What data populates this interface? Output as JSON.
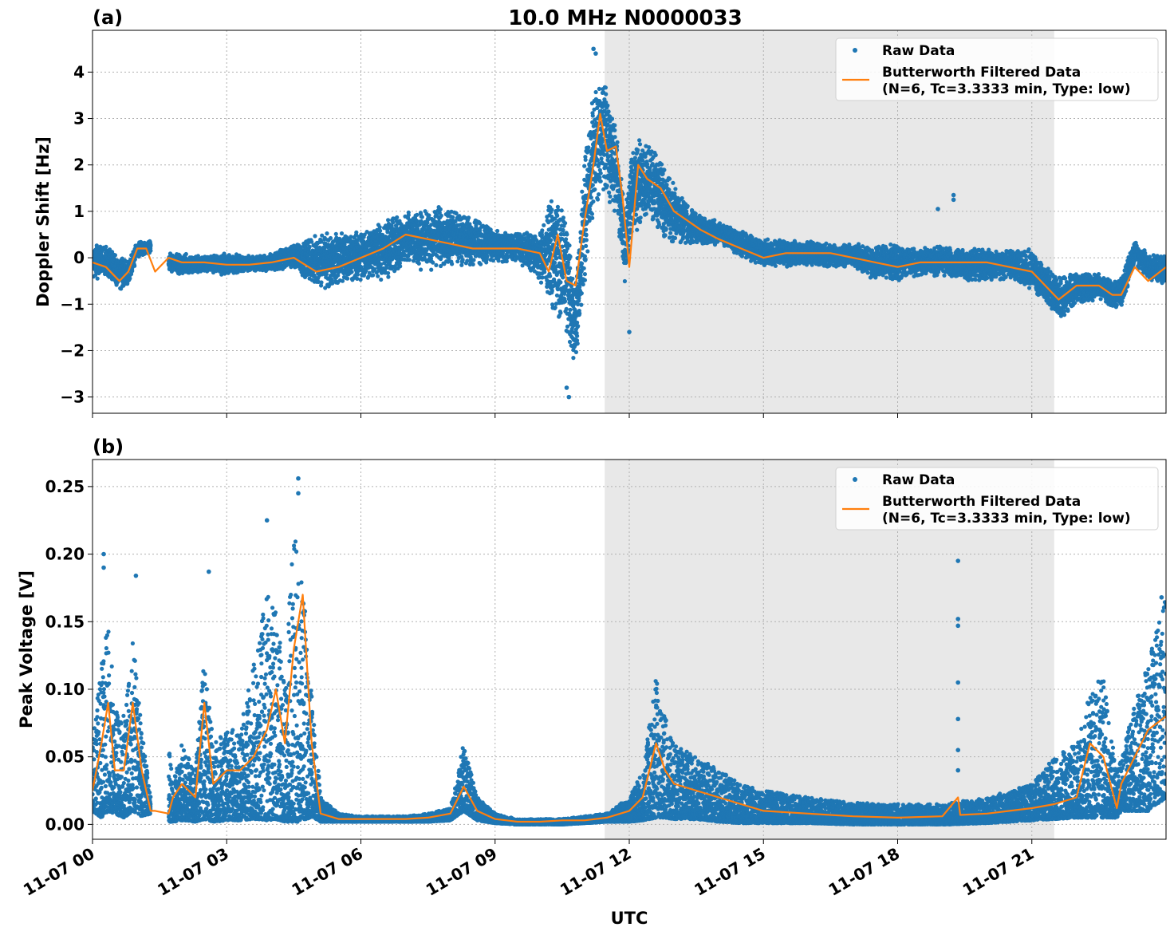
{
  "figure": {
    "title": "10.0 MHz N0000033",
    "xlabel": "UTC",
    "x_tick_labels": [
      "11-07 00",
      "11-07 03",
      "11-07 06",
      "11-07 09",
      "11-07 12",
      "11-07 15",
      "11-07 18",
      "11-07 21"
    ]
  },
  "colors": {
    "raw": "#1f77b4",
    "filtered": "#ff7f0e",
    "shade": "#e8e8e8",
    "grid": "#b0b0b0"
  },
  "chart_data": [
    {
      "type": "scatter",
      "panel_label": "(a)",
      "ylabel": "Doppler Shift [Hz]",
      "xlim": [
        0,
        24
      ],
      "ylim": [
        -3.35,
        4.9
      ],
      "x_unit": "hours UTC on 11-07",
      "yticks": [
        -3,
        -2,
        -1,
        0,
        1,
        2,
        3,
        4
      ],
      "ytick_labels": [
        "−3",
        "−2",
        "−1",
        "0",
        "1",
        "2",
        "3",
        "4"
      ],
      "grid": true,
      "legend_position": "top-right",
      "shaded_interval": [
        11.45,
        21.5
      ],
      "series": [
        {
          "name": "Raw Data",
          "style": "points",
          "envelope_x": [
            0,
            0.3,
            0.6,
            0.8,
            1.0,
            1.3,
            1.4,
            1.7,
            2.0,
            2.5,
            3.0,
            3.5,
            4.0,
            4.5,
            5.0,
            5.5,
            6.0,
            6.5,
            7.0,
            7.5,
            8.0,
            8.5,
            9.0,
            9.5,
            10.0,
            10.3,
            10.6,
            10.8,
            11.0,
            11.2,
            11.45,
            11.7,
            11.9,
            12.1,
            12.3,
            12.6,
            12.9,
            13.2,
            13.5,
            14.0,
            14.5,
            15.0,
            15.5,
            16.0,
            16.5,
            17.0,
            17.5,
            18.0,
            18.5,
            19.0,
            19.5,
            20.0,
            20.5,
            21.0,
            21.3,
            21.6,
            22.0,
            22.5,
            22.8,
            23.0,
            23.3,
            23.6,
            24.0
          ],
          "envelope_low": [
            -0.5,
            -0.4,
            -0.7,
            -0.6,
            0.0,
            0.1,
            null,
            -0.3,
            -0.4,
            -0.3,
            -0.4,
            -0.3,
            -0.3,
            -0.2,
            -0.7,
            -0.7,
            -0.5,
            -0.5,
            -0.2,
            -0.3,
            -0.2,
            -0.2,
            -0.1,
            -0.1,
            -0.5,
            -1.2,
            -1.8,
            -2.4,
            -0.8,
            0.8,
            1.2,
            0.9,
            -0.6,
            0.4,
            0.8,
            0.6,
            0.2,
            0.3,
            0.2,
            0.3,
            0.0,
            -0.2,
            -0.2,
            -0.2,
            -0.2,
            -0.2,
            -0.5,
            -0.5,
            -0.4,
            -0.4,
            -0.5,
            -0.5,
            -0.5,
            -0.7,
            -1.0,
            -1.4,
            -1.0,
            -0.9,
            -1.1,
            -1.1,
            -0.1,
            -0.5,
            -0.6
          ],
          "envelope_high": [
            0.3,
            0.3,
            0.0,
            0.0,
            0.35,
            0.4,
            null,
            0.1,
            0.1,
            0.05,
            0.1,
            0.05,
            0.1,
            0.3,
            0.5,
            0.6,
            0.6,
            0.9,
            1.0,
            1.1,
            1.1,
            0.9,
            0.6,
            0.6,
            0.6,
            1.5,
            1.0,
            -0.5,
            2.5,
            3.6,
            4.0,
            2.8,
            1.3,
            2.6,
            2.6,
            2.4,
            1.8,
            1.3,
            1.0,
            0.8,
            0.6,
            0.4,
            0.4,
            0.4,
            0.3,
            0.3,
            0.3,
            0.3,
            0.2,
            0.3,
            0.2,
            0.2,
            0.2,
            0.2,
            -0.1,
            -0.4,
            -0.3,
            -0.3,
            -0.5,
            -0.4,
            0.4,
            0.1,
            0.1
          ],
          "outliers": [
            [
              10.6,
              -2.8
            ],
            [
              10.65,
              -3.0
            ],
            [
              11.2,
              4.5
            ],
            [
              11.25,
              4.4
            ],
            [
              12.0,
              -1.6
            ],
            [
              19.25,
              1.35
            ],
            [
              19.25,
              1.25
            ],
            [
              18.9,
              1.05
            ]
          ]
        },
        {
          "name": "Butterworth Filtered Data\n(N=6, Tc=3.3333 min, Type: low)",
          "style": "line",
          "x": [
            0,
            0.3,
            0.6,
            0.8,
            1.0,
            1.2,
            1.4,
            1.7,
            2.0,
            2.5,
            3.0,
            3.5,
            4.0,
            4.5,
            5.0,
            5.5,
            6.0,
            6.5,
            7.0,
            7.5,
            8.0,
            8.5,
            9.0,
            9.5,
            10.0,
            10.2,
            10.4,
            10.6,
            10.8,
            11.0,
            11.2,
            11.35,
            11.5,
            11.7,
            11.85,
            12.0,
            12.2,
            12.4,
            12.7,
            13.0,
            13.3,
            13.6,
            14.0,
            14.5,
            15.0,
            15.5,
            16.0,
            16.5,
            17.0,
            17.5,
            18.0,
            18.5,
            19.0,
            19.5,
            20.0,
            20.5,
            21.0,
            21.3,
            21.6,
            22.0,
            22.5,
            22.8,
            23.0,
            23.3,
            23.6,
            24.0
          ],
          "y": [
            -0.1,
            -0.2,
            -0.5,
            -0.3,
            0.2,
            0.2,
            -0.3,
            0.0,
            -0.1,
            -0.1,
            -0.15,
            -0.15,
            -0.1,
            0.0,
            -0.3,
            -0.2,
            0.0,
            0.2,
            0.5,
            0.4,
            0.3,
            0.2,
            0.2,
            0.2,
            0.1,
            -0.3,
            0.5,
            -0.5,
            -0.6,
            0.8,
            2.0,
            3.1,
            2.3,
            2.4,
            1.3,
            -0.2,
            2.0,
            1.7,
            1.5,
            1.0,
            0.8,
            0.6,
            0.4,
            0.2,
            0.0,
            0.1,
            0.1,
            0.1,
            0.0,
            -0.1,
            -0.2,
            -0.1,
            -0.1,
            -0.1,
            -0.1,
            -0.2,
            -0.3,
            -0.6,
            -0.9,
            -0.6,
            -0.6,
            -0.8,
            -0.8,
            -0.2,
            -0.5,
            -0.2
          ]
        }
      ]
    },
    {
      "type": "scatter",
      "panel_label": "(b)",
      "ylabel": "Peak Voltage [V]",
      "xlim": [
        0,
        24
      ],
      "ylim": [
        -0.011,
        0.27
      ],
      "x_unit": "hours UTC on 11-07",
      "yticks": [
        0.0,
        0.05,
        0.1,
        0.15,
        0.2,
        0.25
      ],
      "ytick_labels": [
        "0.00",
        "0.05",
        "0.10",
        "0.15",
        "0.20",
        "0.25"
      ],
      "grid": true,
      "legend_position": "top-right",
      "shaded_interval": [
        11.45,
        21.5
      ],
      "series": [
        {
          "name": "Raw Data",
          "style": "points",
          "envelope_x": [
            0,
            0.2,
            0.35,
            0.5,
            0.7,
            0.9,
            1.1,
            1.3,
            1.4,
            1.7,
            1.8,
            2.0,
            2.3,
            2.5,
            2.7,
            3.0,
            3.3,
            3.6,
            3.9,
            4.1,
            4.3,
            4.5,
            4.7,
            4.9,
            5.1,
            5.5,
            6.0,
            7.0,
            7.5,
            8.0,
            8.3,
            8.6,
            9.0,
            9.5,
            10.0,
            10.5,
            11.0,
            11.5,
            12.0,
            12.3,
            12.6,
            12.8,
            13.0,
            13.5,
            14.0,
            14.5,
            15.0,
            16.0,
            17.0,
            18.0,
            19.0,
            20.0,
            20.5,
            21.0,
            21.5,
            22.0,
            22.3,
            22.6,
            22.9,
            23.0,
            23.3,
            23.6,
            24.0
          ],
          "envelope_low": [
            0.01,
            0.005,
            0.01,
            0.008,
            0.005,
            0.01,
            0.006,
            0.008,
            null,
            0.002,
            0.002,
            0.003,
            0.002,
            0.004,
            0.002,
            0.003,
            0.003,
            0.004,
            0.003,
            0.004,
            0.002,
            0.002,
            0.002,
            0.006,
            0.002,
            0.002,
            0.002,
            0.002,
            0.002,
            0.003,
            0.01,
            0.003,
            0.001,
            0.0,
            0.0,
            0.0,
            0.001,
            0.002,
            0.002,
            0.003,
            0.005,
            0.005,
            0.004,
            0.004,
            0.002,
            0.001,
            0.001,
            0.001,
            0.0,
            0.0,
            0.0,
            0.001,
            0.002,
            0.003,
            0.004,
            0.005,
            0.005,
            0.005,
            0.005,
            0.01,
            0.01,
            0.01,
            0.02
          ],
          "envelope_high": [
            0.06,
            0.12,
            0.15,
            0.09,
            0.08,
            0.14,
            0.07,
            0.02,
            null,
            0.06,
            0.03,
            0.06,
            0.04,
            0.13,
            0.06,
            0.07,
            0.07,
            0.12,
            0.17,
            0.16,
            0.11,
            0.22,
            0.18,
            0.1,
            0.02,
            0.008,
            0.006,
            0.006,
            0.008,
            0.012,
            0.06,
            0.02,
            0.008,
            0.004,
            0.004,
            0.004,
            0.006,
            0.008,
            0.02,
            0.04,
            0.11,
            0.08,
            0.06,
            0.05,
            0.04,
            0.03,
            0.025,
            0.02,
            0.016,
            0.015,
            0.015,
            0.02,
            0.025,
            0.03,
            0.05,
            0.06,
            0.1,
            0.11,
            0.04,
            0.05,
            0.09,
            0.12,
            0.17
          ],
          "outliers": [
            [
              0.25,
              0.2
            ],
            [
              0.25,
              0.19
            ],
            [
              0.97,
              0.184
            ],
            [
              2.6,
              0.187
            ],
            [
              3.9,
              0.225
            ],
            [
              4.6,
              0.256
            ],
            [
              4.6,
              0.245
            ],
            [
              19.35,
              0.195
            ],
            [
              19.35,
              0.152
            ],
            [
              19.35,
              0.147
            ],
            [
              19.35,
              0.105
            ],
            [
              19.35,
              0.078
            ],
            [
              19.35,
              0.055
            ],
            [
              19.35,
              0.04
            ],
            [
              23.9,
              0.168
            ]
          ]
        },
        {
          "name": "Butterworth Filtered Data\n(N=6, Tc=3.3333 min, Type: low)",
          "style": "line",
          "x": [
            0,
            0.2,
            0.35,
            0.5,
            0.7,
            0.9,
            1.1,
            1.3,
            1.4,
            1.7,
            1.8,
            2.0,
            2.3,
            2.5,
            2.7,
            3.0,
            3.3,
            3.6,
            3.9,
            4.1,
            4.3,
            4.5,
            4.7,
            4.9,
            5.1,
            5.5,
            6.0,
            7.0,
            7.5,
            8.0,
            8.3,
            8.6,
            9.0,
            9.5,
            10.0,
            10.5,
            11.0,
            11.5,
            12.0,
            12.3,
            12.6,
            12.8,
            13.0,
            13.5,
            14.0,
            14.5,
            15.0,
            16.0,
            17.0,
            18.0,
            19.0,
            19.35,
            19.4,
            20.0,
            20.5,
            21.0,
            21.5,
            22.0,
            22.3,
            22.6,
            22.9,
            23.0,
            23.3,
            23.6,
            24.0
          ],
          "y": [
            0.025,
            0.06,
            0.09,
            0.04,
            0.04,
            0.09,
            0.04,
            0.01,
            0.01,
            0.008,
            0.02,
            0.03,
            0.02,
            0.09,
            0.03,
            0.04,
            0.04,
            0.05,
            0.07,
            0.1,
            0.06,
            0.13,
            0.17,
            0.06,
            0.008,
            0.004,
            0.004,
            0.004,
            0.005,
            0.008,
            0.028,
            0.01,
            0.004,
            0.002,
            0.002,
            0.003,
            0.003,
            0.005,
            0.01,
            0.02,
            0.06,
            0.04,
            0.03,
            0.025,
            0.02,
            0.015,
            0.01,
            0.008,
            0.006,
            0.005,
            0.006,
            0.02,
            0.007,
            0.008,
            0.01,
            0.012,
            0.015,
            0.02,
            0.06,
            0.05,
            0.012,
            0.03,
            0.05,
            0.07,
            0.08
          ]
        }
      ]
    }
  ]
}
